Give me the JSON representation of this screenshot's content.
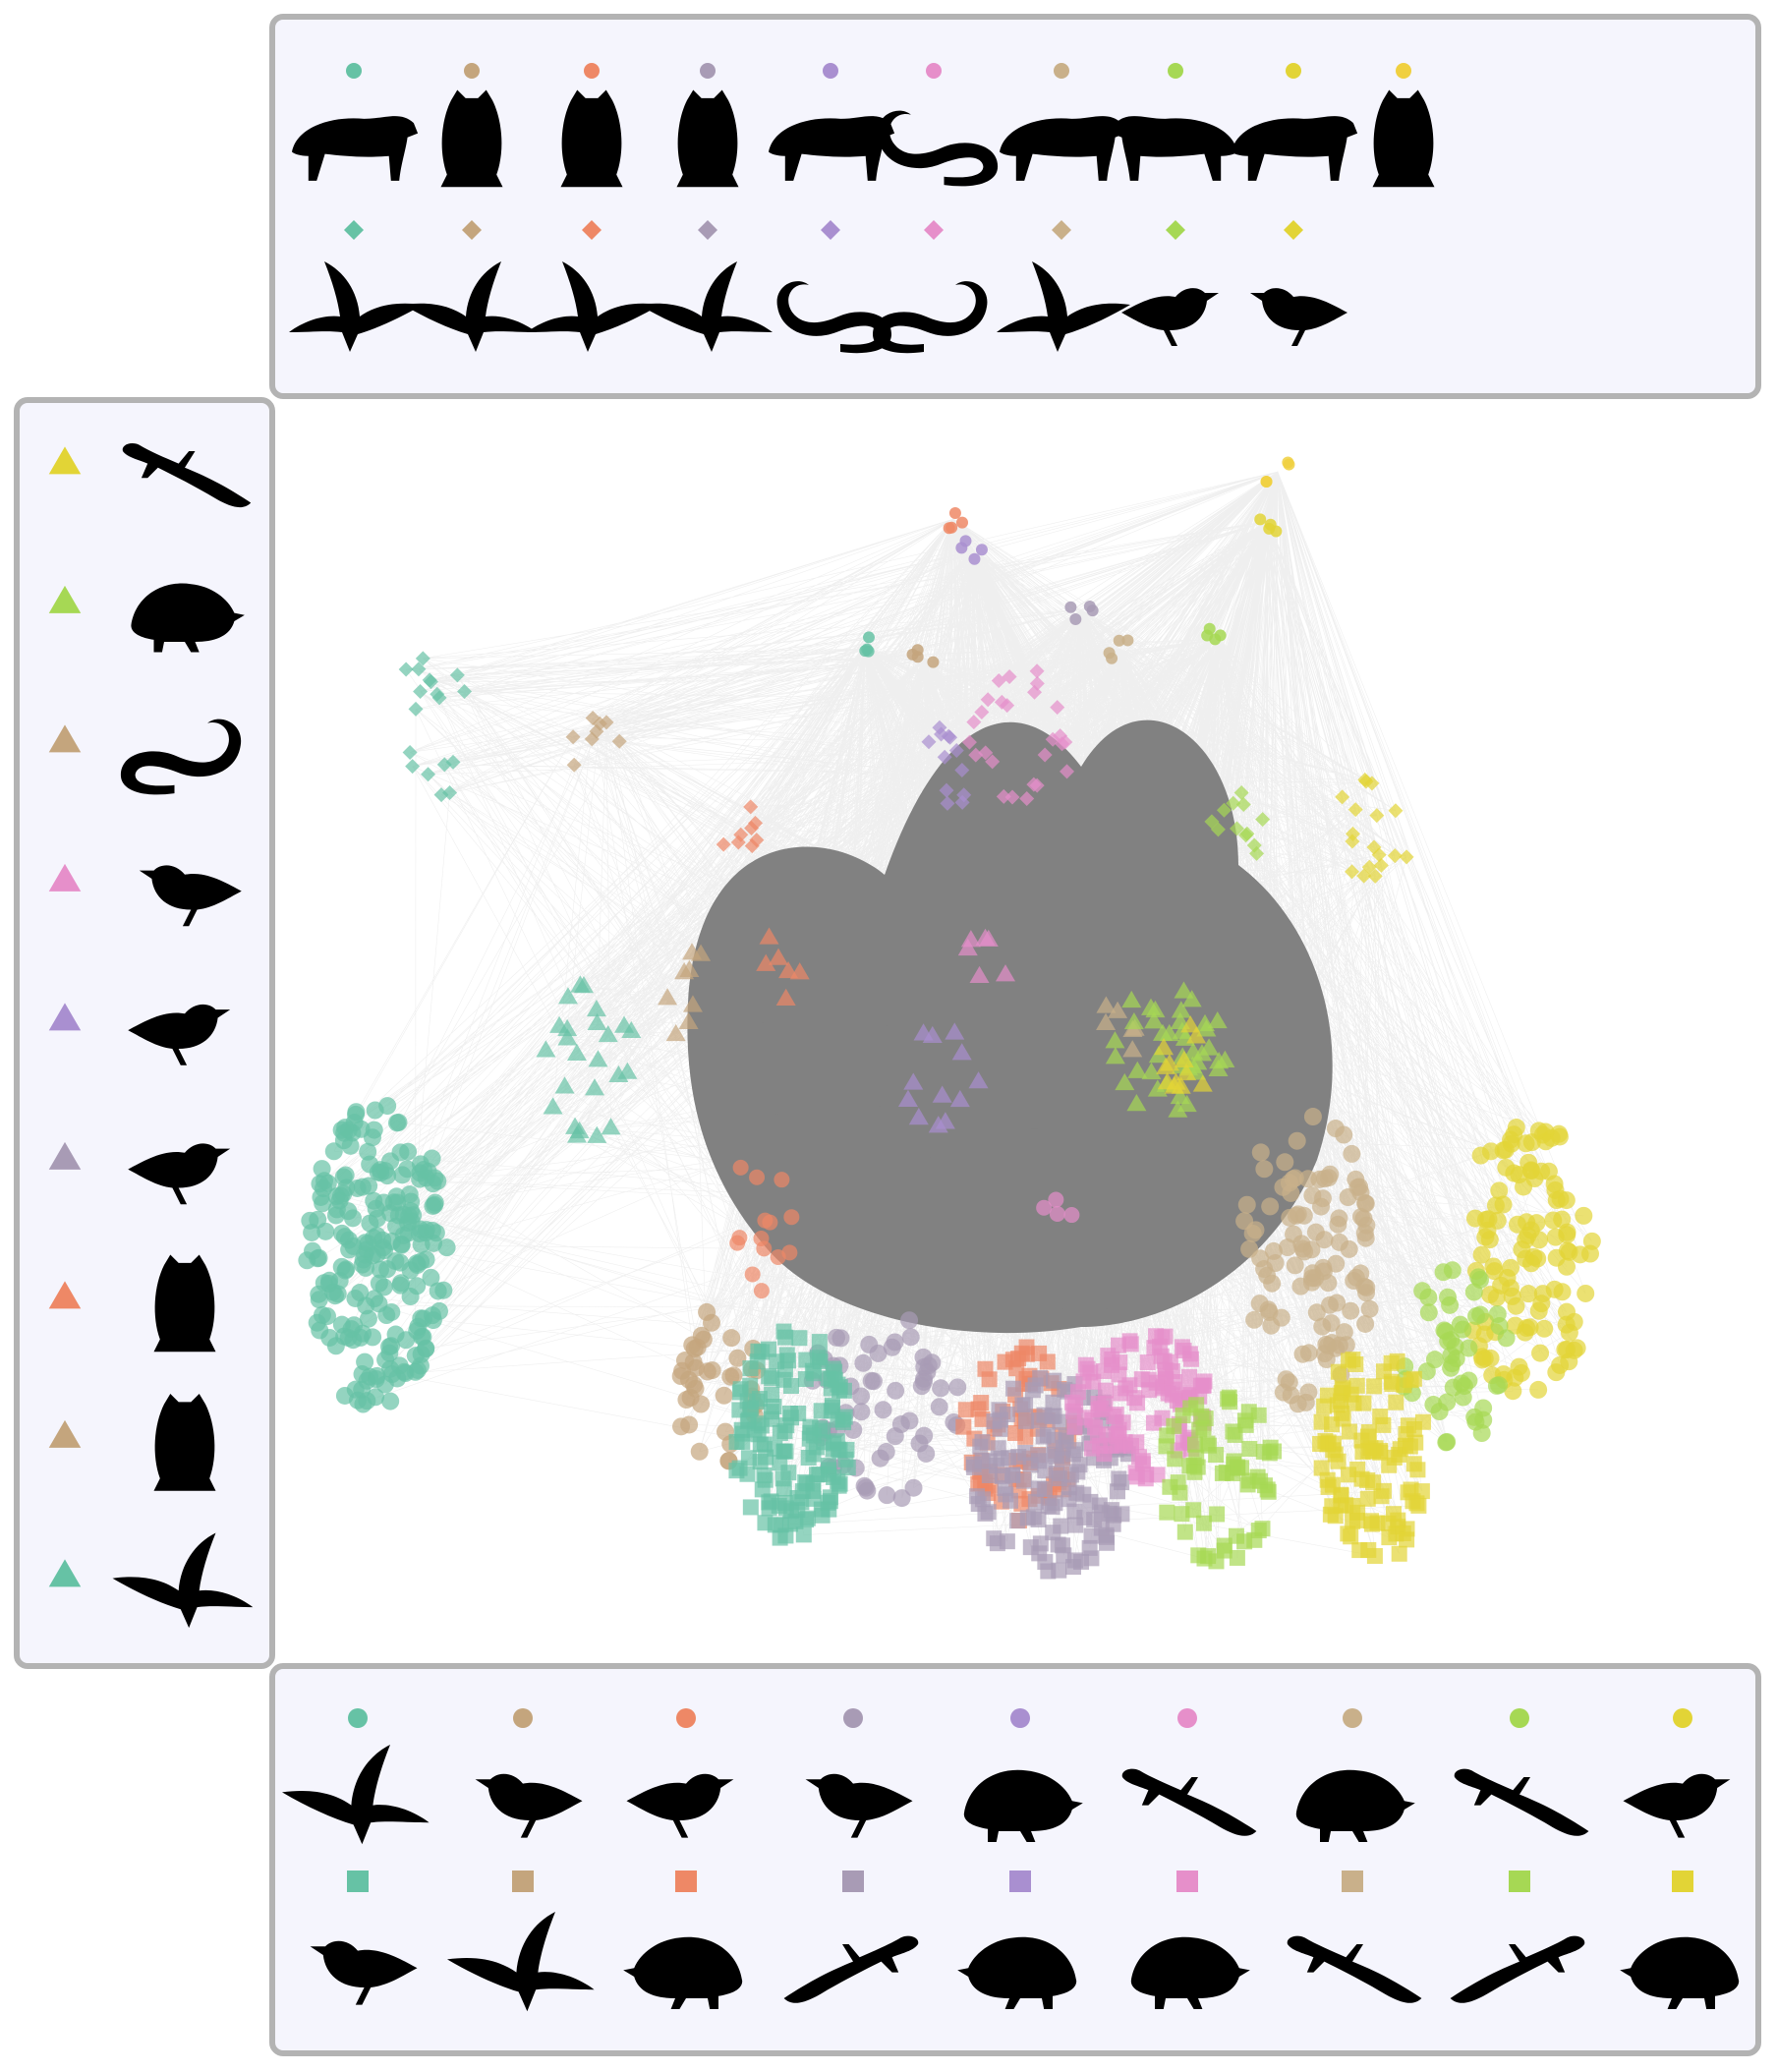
{
  "palette": {
    "teal": "#66c2a5",
    "tan": "#c4a57d",
    "orange": "#ee8866",
    "mauve": "#a89bb5",
    "lavender": "#a98fd0",
    "pink": "#e68fca",
    "sand": "#c9b08a",
    "lime": "#a6d854",
    "yellow": "#e2d436",
    "gold": "#f0d040",
    "edge": "#7a7a7a",
    "panel_bg": "#f5f5fd",
    "panel_border": "#b3b3b3",
    "silhouette": "#000000"
  },
  "legend_top": {
    "row1_marker": "circle",
    "row1": [
      {
        "color": "teal",
        "icon": "climbing-marten-icon"
      },
      {
        "color": "tan",
        "icon": "perched-owl-icon"
      },
      {
        "color": "orange",
        "icon": "eagle-owl-icon"
      },
      {
        "color": "mauve",
        "icon": "howling-wolf-icon"
      },
      {
        "color": "lavender",
        "icon": "badger-icon"
      },
      {
        "color": "pink",
        "icon": "slender-snake-icon"
      },
      {
        "color": "sand",
        "icon": "wild-boar-icon"
      },
      {
        "color": "lime",
        "icon": "standing-weasel-icon"
      },
      {
        "color": "yellow",
        "icon": "lynx-icon"
      },
      {
        "color": "gold",
        "icon": "barn-owl-icon"
      }
    ],
    "row2_marker": "diamond",
    "row2": [
      {
        "color": "teal",
        "icon": "landing-hawk-icon"
      },
      {
        "color": "tan",
        "icon": "soaring-falcon-icon"
      },
      {
        "color": "orange",
        "icon": "diving-harrier-icon"
      },
      {
        "color": "mauve",
        "icon": "flying-buzzard-icon"
      },
      {
        "color": "lavender",
        "icon": "coiled-snake-icon"
      },
      {
        "color": "pink",
        "icon": "grass-snake-icon"
      },
      {
        "color": "sand",
        "icon": "kite-icon"
      },
      {
        "color": "lime",
        "icon": "heron-icon"
      },
      {
        "color": "yellow",
        "icon": "gull-icon"
      }
    ]
  },
  "legend_left": {
    "marker": "triangle",
    "items": [
      {
        "color": "yellow",
        "icon": "log-lizard-icon"
      },
      {
        "color": "lime",
        "icon": "hedgehog-icon"
      },
      {
        "color": "tan",
        "icon": "curled-snake-icon"
      },
      {
        "color": "pink",
        "icon": "crow-icon"
      },
      {
        "color": "lavender",
        "icon": "long-tailed-bird-icon"
      },
      {
        "color": "mauve",
        "icon": "shrike-icon"
      },
      {
        "color": "orange",
        "icon": "long-eared-owl-icon"
      },
      {
        "color": "tan",
        "icon": "little-owl-icon"
      },
      {
        "color": "teal",
        "icon": "swallow-icon"
      }
    ]
  },
  "legend_bottom": {
    "row1_marker": "circle",
    "row1": [
      {
        "color": "teal",
        "icon": "swift-icon"
      },
      {
        "color": "tan",
        "icon": "wren-icon"
      },
      {
        "color": "orange",
        "icon": "sparrow-icon"
      },
      {
        "color": "mauve",
        "icon": "finch-icon"
      },
      {
        "color": "lavender",
        "icon": "mole-icon"
      },
      {
        "color": "pink",
        "icon": "newt-icon"
      },
      {
        "color": "sand",
        "icon": "squirrel-icon"
      },
      {
        "color": "lime",
        "icon": "gecko-icon"
      },
      {
        "color": "yellow",
        "icon": "sandpiper-icon"
      }
    ],
    "row2_marker": "square",
    "row2": [
      {
        "color": "teal",
        "icon": "warbler-icon"
      },
      {
        "color": "tan",
        "icon": "gliding-bird-icon"
      },
      {
        "color": "orange",
        "icon": "shrew-icon"
      },
      {
        "color": "mauve",
        "icon": "wall-lizard-icon"
      },
      {
        "color": "lavender",
        "icon": "vole-icon"
      },
      {
        "color": "pink",
        "icon": "hamster-icon"
      },
      {
        "color": "sand",
        "icon": "green-lizard-icon"
      },
      {
        "color": "lime",
        "icon": "salamander-icon"
      },
      {
        "color": "yellow",
        "icon": "toad-icon"
      }
    ]
  },
  "network": {
    "node_shapes": [
      "circle",
      "diamond",
      "triangle",
      "square"
    ],
    "hubs": [
      {
        "color": "orange",
        "shape": "circle"
      },
      {
        "color": "lavender",
        "shape": "circle"
      },
      {
        "color": "mauve",
        "shape": "circle"
      },
      {
        "color": "gold",
        "shape": "circle"
      },
      {
        "color": "yellow",
        "shape": "circle"
      },
      {
        "color": "lime",
        "shape": "circle"
      },
      {
        "color": "sand",
        "shape": "circle"
      },
      {
        "color": "teal",
        "shape": "circle"
      },
      {
        "color": "tan",
        "shape": "circle"
      }
    ],
    "clusters": [
      {
        "color": "teal",
        "shape": "diamond"
      },
      {
        "color": "tan",
        "shape": "diamond"
      },
      {
        "color": "orange",
        "shape": "diamond"
      },
      {
        "color": "pink",
        "shape": "diamond"
      },
      {
        "color": "lavender",
        "shape": "diamond"
      },
      {
        "color": "lime",
        "shape": "diamond"
      },
      {
        "color": "yellow",
        "shape": "diamond"
      },
      {
        "color": "teal",
        "shape": "triangle"
      },
      {
        "color": "tan",
        "shape": "triangle"
      },
      {
        "color": "orange",
        "shape": "triangle"
      },
      {
        "color": "pink",
        "shape": "triangle"
      },
      {
        "color": "lavender",
        "shape": "triangle"
      },
      {
        "color": "sand",
        "shape": "triangle"
      },
      {
        "color": "lime",
        "shape": "triangle"
      },
      {
        "color": "yellow",
        "shape": "triangle"
      },
      {
        "color": "teal",
        "shape": "circle"
      },
      {
        "color": "orange",
        "shape": "circle"
      },
      {
        "color": "pink",
        "shape": "circle"
      },
      {
        "color": "tan",
        "shape": "circle"
      },
      {
        "color": "mauve",
        "shape": "circle"
      },
      {
        "color": "sand",
        "shape": "circle"
      },
      {
        "color": "yellow",
        "shape": "circle"
      },
      {
        "color": "lime",
        "shape": "circle"
      },
      {
        "color": "teal",
        "shape": "square"
      },
      {
        "color": "orange",
        "shape": "square"
      },
      {
        "color": "mauve",
        "shape": "square"
      },
      {
        "color": "pink",
        "shape": "square"
      },
      {
        "color": "lime",
        "shape": "square"
      },
      {
        "color": "yellow",
        "shape": "square"
      }
    ]
  }
}
